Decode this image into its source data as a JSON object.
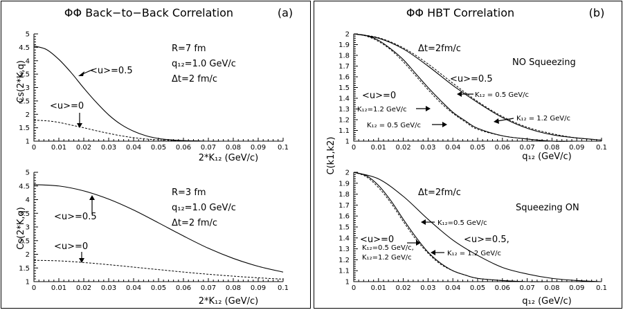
{
  "left_panel": {
    "title": "ΦΦ Back−to−Back Correlation",
    "tag": "(a)"
  },
  "right_panel": {
    "title": "ΦΦ HBT Correlation",
    "tag": "(b)",
    "ylabel": "C(k1,k2)"
  },
  "chart_data": [
    {
      "id": "a-top",
      "type": "line",
      "title": "",
      "xlabel": "2*K₁₂  (GeV/c)",
      "ylabel": "Cs(2*K,q)",
      "xlim": [
        0,
        0.1
      ],
      "ylim": [
        1,
        5
      ],
      "xticks": [
        "0",
        "0.01",
        "0.02",
        "0.03",
        "0.04",
        "0.05",
        "0.06",
        "0.07",
        "0.08",
        "0.09",
        "0.1"
      ],
      "yticks": [
        "1",
        "1.5",
        "2",
        "2.5",
        "3",
        "3.5",
        "4",
        "4.5",
        "5"
      ],
      "params": [
        "R=7 fm",
        "q₁₂=1.0 GeV/c",
        "Δt=2 fm/c"
      ],
      "annotations": [
        "<u>=0.5",
        "<u>=0"
      ],
      "series": [
        {
          "style": "solid",
          "x": [
            0,
            0.005,
            0.01,
            0.015,
            0.02,
            0.025,
            0.03,
            0.035,
            0.04,
            0.045,
            0.05,
            0.055,
            0.06,
            0.065,
            0.07,
            0.075,
            0.08,
            0.09,
            0.1
          ],
          "y": [
            4.55,
            4.42,
            4.05,
            3.55,
            2.98,
            2.45,
            1.98,
            1.62,
            1.37,
            1.2,
            1.1,
            1.05,
            1.02,
            1.01,
            1.0,
            1.0,
            1.0,
            1.0,
            1.0
          ]
        },
        {
          "style": "dashed",
          "x": [
            0,
            0.005,
            0.01,
            0.015,
            0.02,
            0.025,
            0.03,
            0.035,
            0.04,
            0.045,
            0.05,
            0.055,
            0.06,
            0.07,
            0.08,
            0.09,
            0.1
          ],
          "y": [
            1.78,
            1.76,
            1.7,
            1.6,
            1.5,
            1.39,
            1.29,
            1.2,
            1.13,
            1.08,
            1.05,
            1.03,
            1.02,
            1.0,
            1.0,
            1.0,
            1.0
          ]
        }
      ]
    },
    {
      "id": "a-bottom",
      "type": "line",
      "title": "",
      "xlabel": "2*K₁₂  (GeV/c)",
      "ylabel": "Cs(2*K,q)",
      "xlim": [
        0,
        0.1
      ],
      "ylim": [
        1,
        5
      ],
      "xticks": [
        "0",
        "0.01",
        "0.02",
        "0.03",
        "0.04",
        "0.05",
        "0.06",
        "0.07",
        "0.08",
        "0.09",
        "0.1"
      ],
      "yticks": [
        "1",
        "1.5",
        "2",
        "2.5",
        "3",
        "3.5",
        "4",
        "4.5",
        "5"
      ],
      "params": [
        "R=3 fm",
        "q₁₂=1.0 GeV/c",
        "Δt=2 fm/c"
      ],
      "annotations": [
        "<u>=0.5",
        "<u>=0"
      ],
      "series": [
        {
          "style": "solid",
          "x": [
            0,
            0.01,
            0.02,
            0.03,
            0.04,
            0.05,
            0.06,
            0.07,
            0.08,
            0.09,
            0.1
          ],
          "y": [
            4.55,
            4.5,
            4.32,
            4.02,
            3.62,
            3.15,
            2.67,
            2.22,
            1.85,
            1.56,
            1.35
          ]
        },
        {
          "style": "dashed",
          "x": [
            0,
            0.01,
            0.02,
            0.03,
            0.04,
            0.05,
            0.06,
            0.07,
            0.08,
            0.09,
            0.1
          ],
          "y": [
            1.78,
            1.76,
            1.7,
            1.62,
            1.53,
            1.44,
            1.35,
            1.27,
            1.2,
            1.14,
            1.09
          ]
        }
      ]
    },
    {
      "id": "b-top",
      "type": "line",
      "title": "",
      "xlabel": "q₁₂ (GeV/c)",
      "ylabel": "C(k1,k2)",
      "xlim": [
        0,
        0.1
      ],
      "ylim": [
        1,
        2
      ],
      "xticks": [
        "0",
        "0.01",
        "0.02",
        "0.03",
        "0.04",
        "0.05",
        "0.06",
        "0.07",
        "0.08",
        "0.09",
        "0.1"
      ],
      "yticks": [
        "1",
        "1.1",
        "1.2",
        "1.3",
        "1.4",
        "1.5",
        "1.6",
        "1.7",
        "1.8",
        "1.9",
        "2"
      ],
      "params": [
        "Δt=2fm/c",
        "NO Squeezing"
      ],
      "annotations": [
        "<u>=0.5",
        "<u>=0",
        "K₁₂ = 0.5 GeV/c",
        "K₁₂ = 1.2 GeV/c",
        "K₁₂=1.2 GeV/c",
        "K₁₂ = 0.5 GeV/c"
      ],
      "series": [
        {
          "style": "solid",
          "x": [
            0,
            0.005,
            0.01,
            0.015,
            0.02,
            0.025,
            0.03,
            0.035,
            0.04,
            0.045,
            0.05,
            0.06,
            0.07,
            0.08,
            0.09,
            0.1
          ],
          "y": [
            2.0,
            1.985,
            1.94,
            1.86,
            1.76,
            1.63,
            1.5,
            1.38,
            1.27,
            1.19,
            1.12,
            1.05,
            1.02,
            1.0,
            1.0,
            1.0
          ]
        },
        {
          "style": "dashed",
          "x": [
            0,
            0.005,
            0.01,
            0.015,
            0.02,
            0.025,
            0.03,
            0.035,
            0.04,
            0.045,
            0.05,
            0.06,
            0.07,
            0.08,
            0.09,
            0.1
          ],
          "y": [
            2.0,
            1.98,
            1.93,
            1.85,
            1.74,
            1.61,
            1.48,
            1.36,
            1.26,
            1.18,
            1.11,
            1.05,
            1.02,
            1.0,
            1.0,
            1.0
          ]
        },
        {
          "style": "solid",
          "x": [
            0,
            0.01,
            0.02,
            0.03,
            0.04,
            0.05,
            0.06,
            0.07,
            0.08,
            0.09,
            0.1
          ],
          "y": [
            2.0,
            1.96,
            1.86,
            1.7,
            1.52,
            1.36,
            1.22,
            1.12,
            1.06,
            1.03,
            1.01
          ]
        },
        {
          "style": "dashed",
          "x": [
            0,
            0.01,
            0.02,
            0.03,
            0.04,
            0.05,
            0.06,
            0.07,
            0.08,
            0.09,
            0.1
          ],
          "y": [
            2.0,
            1.965,
            1.87,
            1.72,
            1.54,
            1.37,
            1.23,
            1.13,
            1.07,
            1.03,
            1.01
          ]
        }
      ]
    },
    {
      "id": "b-bottom",
      "type": "line",
      "title": "",
      "xlabel": "q₁₂ (GeV/c)",
      "ylabel": "C(k1,k2)",
      "xlim": [
        0,
        0.1
      ],
      "ylim": [
        1,
        2
      ],
      "xticks": [
        "0",
        "0.01",
        "0.02",
        "0.03",
        "0.04",
        "0.05",
        "0.06",
        "0.07",
        "0.08",
        "0.09",
        "0.1"
      ],
      "yticks": [
        "1",
        "1.1",
        "1.2",
        "1.3",
        "1.4",
        "1.5",
        "1.6",
        "1.7",
        "1.8",
        "1.9",
        "2"
      ],
      "params": [
        "Δt=2fm/c",
        "Squeezing ON"
      ],
      "annotations": [
        "<u>=0",
        "<u>=0.5,",
        "K₁₂=0.5 GeV/c",
        "K₁₂ = 1.2 GeV/c",
        "K₁₂=0.5 GeV/c,",
        "K₁₂=1.2 GeV/c"
      ],
      "series": [
        {
          "style": "solid",
          "x": [
            0,
            0.005,
            0.01,
            0.015,
            0.02,
            0.025,
            0.03,
            0.035,
            0.04,
            0.045,
            0.05,
            0.06,
            0.07,
            0.08,
            0.09,
            0.1
          ],
          "y": [
            2.0,
            1.97,
            1.88,
            1.74,
            1.57,
            1.41,
            1.27,
            1.17,
            1.1,
            1.06,
            1.03,
            1.01,
            1.0,
            1.0,
            1.0,
            1.0
          ]
        },
        {
          "style": "dashed",
          "x": [
            0,
            0.005,
            0.01,
            0.015,
            0.02,
            0.025,
            0.03,
            0.035,
            0.04,
            0.045,
            0.05,
            0.06,
            0.07,
            0.08,
            0.09,
            0.1
          ],
          "y": [
            2.0,
            1.96,
            1.86,
            1.72,
            1.55,
            1.39,
            1.26,
            1.16,
            1.1,
            1.06,
            1.03,
            1.01,
            1.0,
            1.0,
            1.0,
            1.0
          ]
        },
        {
          "style": "solid",
          "x": [
            0,
            0.01,
            0.02,
            0.03,
            0.04,
            0.05,
            0.06,
            0.07,
            0.08,
            0.09,
            0.1
          ],
          "y": [
            2.0,
            1.94,
            1.78,
            1.57,
            1.38,
            1.24,
            1.13,
            1.07,
            1.03,
            1.01,
            1.0
          ]
        }
      ]
    }
  ]
}
